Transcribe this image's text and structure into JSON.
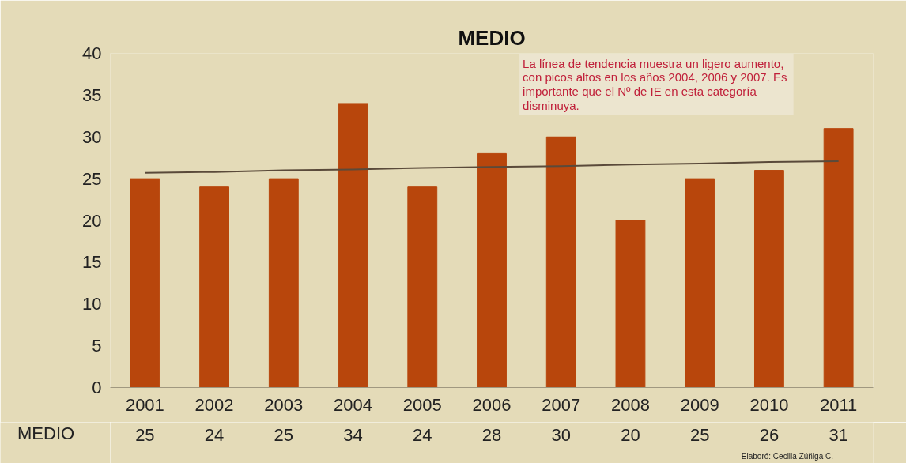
{
  "chart_data": {
    "type": "bar",
    "title": "MEDIO",
    "categories": [
      "2001",
      "2002",
      "2003",
      "2004",
      "2005",
      "2006",
      "2007",
      "2008",
      "2009",
      "2010",
      "2011"
    ],
    "series": [
      {
        "name": "MEDIO",
        "color": "#b8460c",
        "values": [
          25,
          24,
          25,
          34,
          24,
          28,
          30,
          20,
          25,
          26,
          31
        ],
        "value_labels": [
          "25",
          "24",
          "25",
          "34",
          "24",
          "28",
          "30",
          "20",
          "25",
          "26",
          "31"
        ]
      },
      {
        "type": "line",
        "color": "#5a4a3a",
        "values": [
          25.7,
          25.8,
          26.0,
          26.1,
          26.3,
          26.4,
          26.5,
          26.7,
          26.8,
          27.0,
          27.1
        ]
      }
    ],
    "ylim": [
      0,
      40
    ],
    "yticks": [
      0,
      5,
      10,
      15,
      20,
      25,
      30,
      35,
      40
    ],
    "legend": "bottom left",
    "grid": false,
    "annotations": [
      "La línea de tendencia muestra  un ligero aumento, con picos altos en los años 2004, 2006 y 2007.  Es importante que el Nº de IE en esta categoría disminuya.",
      "Elaboró: Cecilia Zúñiga C."
    ]
  }
}
